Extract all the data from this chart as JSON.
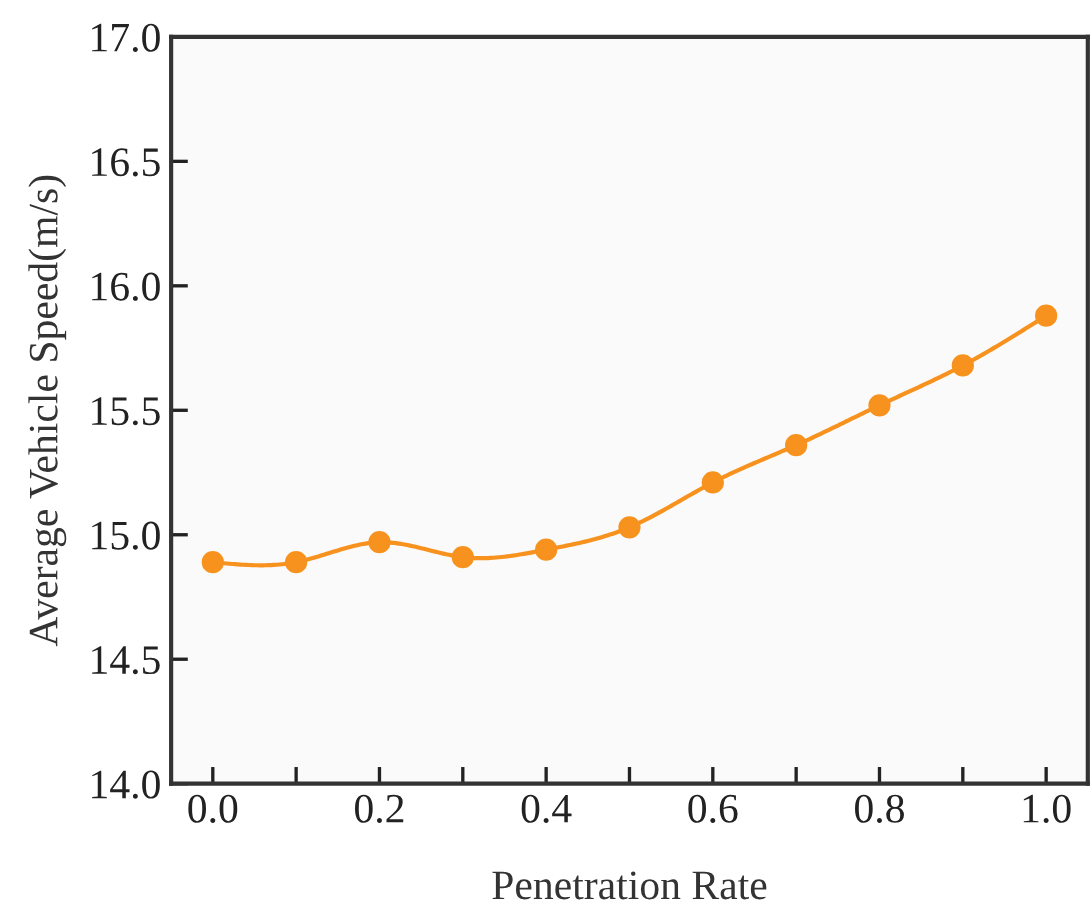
{
  "chart_data": {
    "type": "line",
    "xlabel": "Penetration Rate",
    "ylabel": "Average Vehicle Speed(m/s)",
    "x": [
      0.0,
      0.1,
      0.2,
      0.3,
      0.4,
      0.5,
      0.6,
      0.7,
      0.8,
      0.9,
      1.0
    ],
    "series": [
      {
        "color": "#f7921e",
        "values": [
          14.89,
          14.89,
          14.97,
          14.91,
          14.94,
          15.03,
          15.21,
          15.36,
          15.52,
          15.68,
          15.88
        ]
      }
    ],
    "xlim": [
      -0.05,
      1.05
    ],
    "ylim": [
      14.0,
      17.0
    ],
    "xticks": [
      {
        "value": 0,
        "label": "0.0"
      },
      {
        "value": 0.1,
        "label": null
      },
      0.2,
      {
        "value": 0.3,
        "label": null
      },
      0.4,
      {
        "value": 0.5,
        "label": null
      },
      0.6,
      {
        "value": 0.7,
        "label": null
      },
      0.8,
      {
        "value": 0.9,
        "label": null
      },
      {
        "value": 1,
        "label": "1.0"
      }
    ],
    "yticks": [
      {
        "value": 14.0,
        "label": "14.0"
      },
      14.5,
      {
        "value": 15.0,
        "label": "15.0"
      },
      15.5,
      {
        "value": 16.0,
        "label": "16.0"
      },
      16.5,
      {
        "value": 17.0,
        "label": "17.0"
      }
    ],
    "marker": "circle",
    "grid": false
  }
}
